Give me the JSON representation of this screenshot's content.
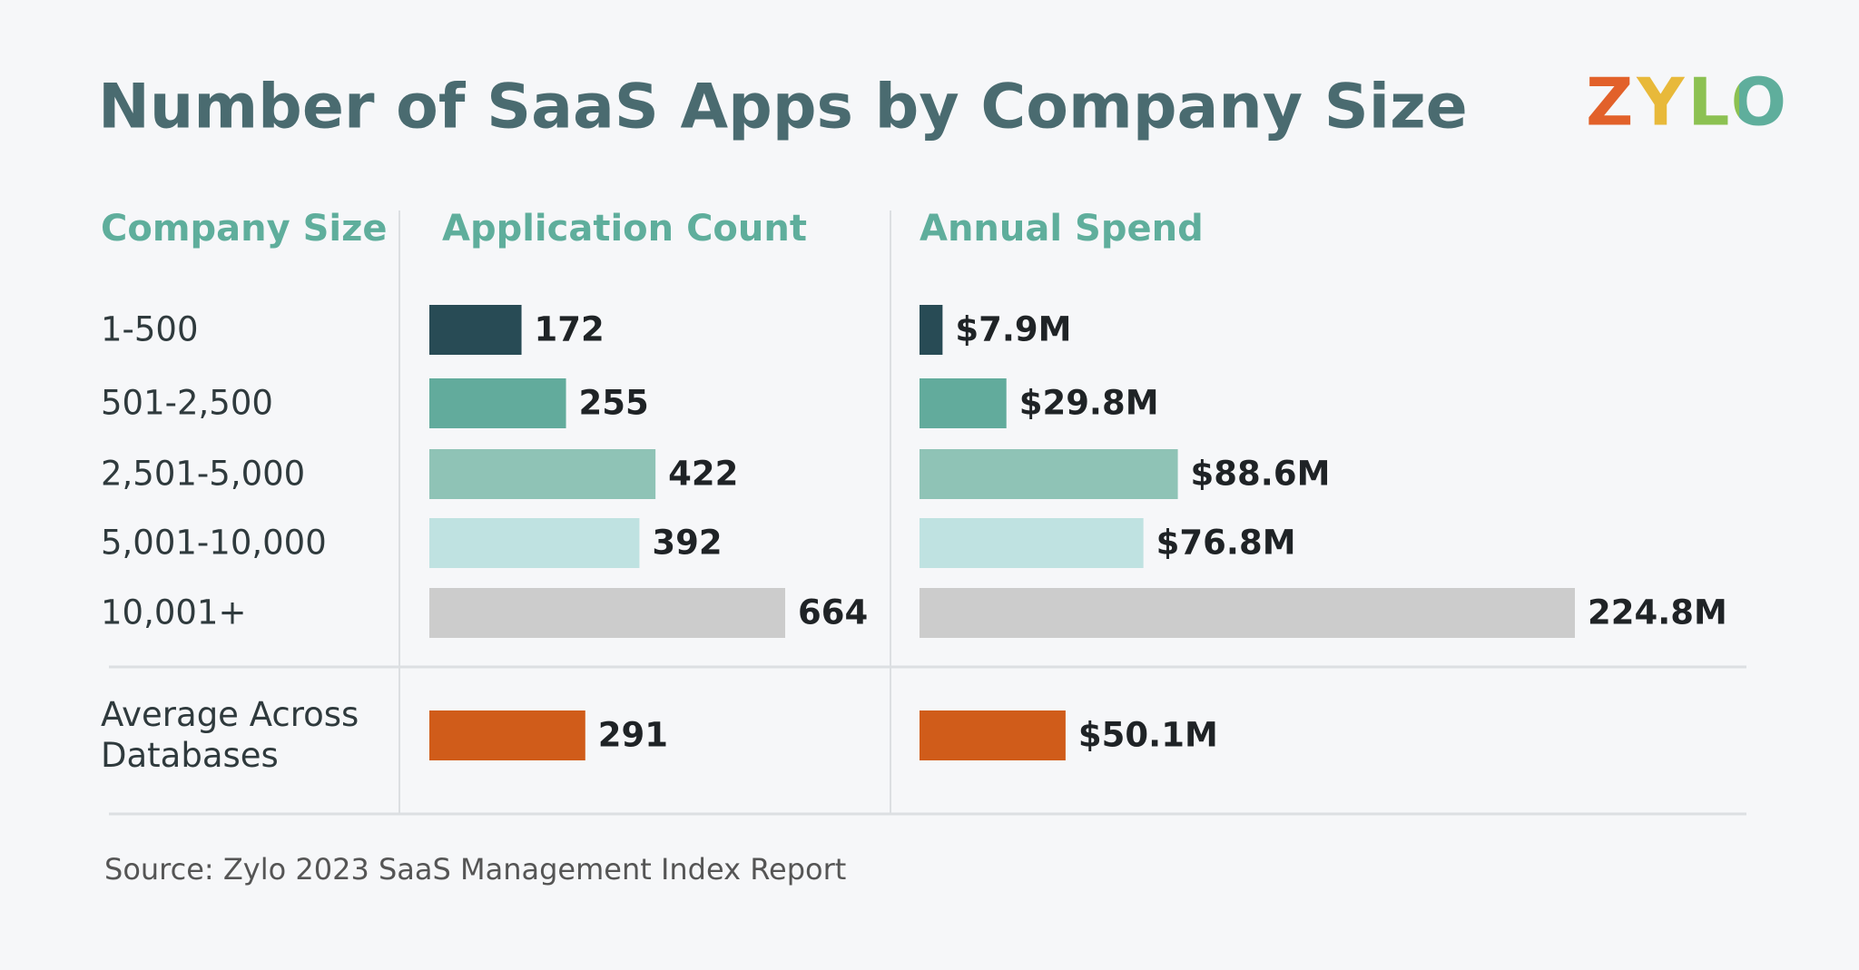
{
  "title": "Number of SaaS Apps by Company Size",
  "logo": "ZYLO",
  "row_header": "Company Size",
  "source": "Source: Zylo 2023 SaaS Management Index Report",
  "chart_data": [
    {
      "type": "bar",
      "orientation": "horizontal",
      "title": "Application Count",
      "categories": [
        "1-500",
        "501-2,500",
        "2,501-5,000",
        "5,001-10,000",
        "10,001+",
        "Average Across Databases"
      ],
      "values": [
        172,
        255,
        422,
        392,
        664,
        291
      ],
      "colors": [
        "#284b55",
        "#62ab9c",
        "#8fc3b6",
        "#bfe2e1",
        "#cccccc",
        "#d05c1a"
      ]
    },
    {
      "type": "bar",
      "orientation": "horizontal",
      "title": "Annual Spend",
      "values": [
        7.9,
        29.8,
        88.6,
        76.8,
        224.8,
        50.1
      ],
      "value_labels": [
        "$7.9M",
        "$29.8M",
        "$88.6M",
        "$76.8M",
        "224.8M",
        "$50.1M"
      ],
      "colors": [
        "#284b55",
        "#62ab9c",
        "#8fc3b6",
        "#bfe2e1",
        "#cccccc",
        "#d05c1a"
      ]
    }
  ]
}
